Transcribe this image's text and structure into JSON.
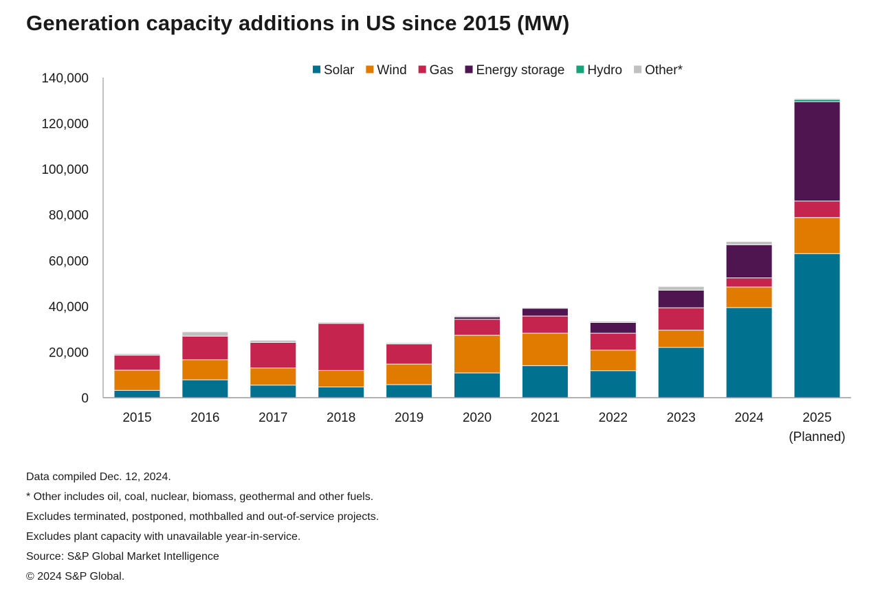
{
  "title": "Generation capacity additions in US since 2015 (MW)",
  "chart_data": {
    "type": "bar",
    "stacked": true,
    "title": "Generation capacity additions in US since 2015 (MW)",
    "xlabel": "",
    "ylabel": "",
    "ylim": [
      0,
      140000
    ],
    "yticks": [
      "0",
      "20,000",
      "40,000",
      "60,000",
      "80,000",
      "100,000",
      "120,000",
      "140,000"
    ],
    "grid": false,
    "legend_position": "top",
    "categories": [
      [
        "2015"
      ],
      [
        "2016"
      ],
      [
        "2017"
      ],
      [
        "2018"
      ],
      [
        "2019"
      ],
      [
        "2020"
      ],
      [
        "2021"
      ],
      [
        "2022"
      ],
      [
        "2023"
      ],
      [
        "2024"
      ],
      [
        "2025",
        "(Planned)"
      ]
    ],
    "series": [
      {
        "name": "Solar",
        "color": "#00728f",
        "values": [
          3200,
          7800,
          5500,
          4700,
          5700,
          10800,
          14000,
          11800,
          22000,
          39400,
          63000
        ]
      },
      {
        "name": "Wind",
        "color": "#e07b00",
        "values": [
          8800,
          8800,
          7500,
          7200,
          9000,
          16500,
          14200,
          9000,
          7500,
          9000,
          15800
        ]
      },
      {
        "name": "Gas",
        "color": "#c4244e",
        "values": [
          6600,
          10300,
          11200,
          20600,
          8800,
          7000,
          7500,
          7400,
          9800,
          4000,
          7200
        ]
      },
      {
        "name": "Energy storage",
        "color": "#4e1551",
        "values": [
          0,
          0,
          0,
          0,
          0,
          1000,
          3400,
          4700,
          7700,
          14500,
          43500
        ]
      },
      {
        "name": "Hydro",
        "color": "#17a37a",
        "values": [
          0,
          0,
          0,
          0,
          0,
          0,
          0,
          0,
          0,
          0,
          1000
        ]
      },
      {
        "name": "Other*",
        "color": "#c0c0c0",
        "values": [
          500,
          1800,
          800,
          400,
          400,
          400,
          300,
          400,
          1500,
          1300,
          300
        ]
      }
    ]
  },
  "notes": [
    "Data compiled Dec. 12, 2024.",
    "* Other includes oil, coal, nuclear, biomass, geothermal and other fuels.",
    "Excludes terminated, postponed, mothballed and out-of-service projects.",
    "Excludes plant capacity with unavailable year-in-service.",
    "Source: S&P Global Market Intelligence",
    "© 2024 S&P Global."
  ]
}
